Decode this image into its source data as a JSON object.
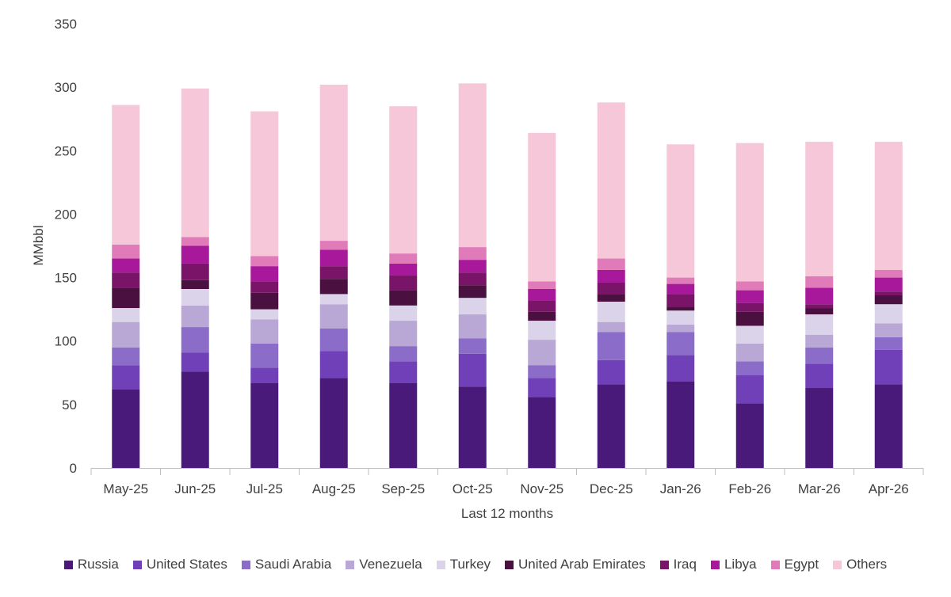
{
  "chart_data": {
    "type": "bar",
    "stacked": true,
    "title": "",
    "xlabel": "Last 12 months",
    "ylabel": "MMbbl",
    "ylim": [
      0,
      350
    ],
    "yticks": [
      0,
      50,
      100,
      150,
      200,
      250,
      300,
      350
    ],
    "grid": false,
    "legend_position": "bottom",
    "categories": [
      "May-25",
      "Jun-25",
      "Jul-25",
      "Aug-25",
      "Sep-25",
      "Oct-25",
      "Nov-25",
      "Dec-25",
      "Jan-26",
      "Feb-26",
      "Mar-26",
      "Apr-26"
    ],
    "series": [
      {
        "name": "Russia",
        "color": "#4a1a7a",
        "values": [
          62,
          76,
          67,
          71,
          67,
          64,
          56,
          66,
          68,
          51,
          63,
          66
        ]
      },
      {
        "name": "United States",
        "color": "#7040b8",
        "values": [
          19,
          15,
          12,
          21,
          17,
          26,
          15,
          19,
          21,
          22,
          19,
          27
        ]
      },
      {
        "name": "Saudi Arabia",
        "color": "#8b6cc8",
        "values": [
          14,
          20,
          19,
          18,
          12,
          12,
          10,
          22,
          18,
          11,
          13,
          10
        ]
      },
      {
        "name": "Venezuela",
        "color": "#b9a7d6",
        "values": [
          20,
          17,
          19,
          19,
          20,
          19,
          20,
          8,
          6,
          14,
          10,
          11
        ]
      },
      {
        "name": "Turkey",
        "color": "#dad3ea",
        "values": [
          11,
          13,
          8,
          8,
          12,
          13,
          15,
          16,
          11,
          14,
          16,
          15
        ]
      },
      {
        "name": "United Arab Emirates",
        "color": "#4a1040",
        "values": [
          16,
          7,
          13,
          12,
          12,
          10,
          7,
          6,
          3,
          11,
          5,
          7
        ]
      },
      {
        "name": "Iraq",
        "color": "#7a1468",
        "values": [
          12,
          13,
          9,
          10,
          12,
          10,
          9,
          9,
          10,
          7,
          3,
          3
        ]
      },
      {
        "name": "Libya",
        "color": "#a8189a",
        "values": [
          11,
          14,
          12,
          13,
          9,
          10,
          9,
          10,
          8,
          10,
          13,
          11
        ]
      },
      {
        "name": "Egypt",
        "color": "#e07ab8",
        "values": [
          11,
          7,
          8,
          7,
          8,
          10,
          6,
          9,
          5,
          7,
          9,
          6
        ]
      },
      {
        "name": "Others",
        "color": "#f6c6d9",
        "values": [
          110,
          117,
          114,
          123,
          116,
          129,
          117,
          123,
          105,
          109,
          106,
          101
        ]
      }
    ]
  }
}
